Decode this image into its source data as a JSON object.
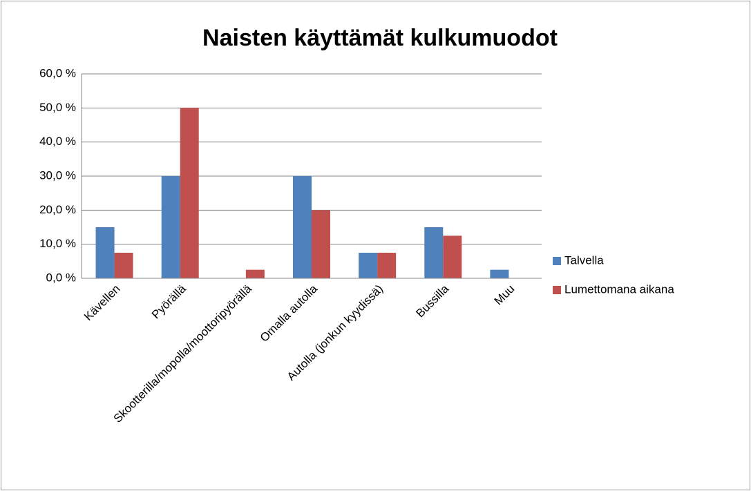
{
  "chart_data": {
    "type": "bar",
    "title": "Naisten käyttämät kulkumuodot",
    "categories": [
      "Kävellen",
      "Pyörällä",
      "Skootterilla/mopolla/moottoripyörällä",
      "Omalla autolla",
      "Autolla (jonkun kyydissä)",
      "Bussilla",
      "Muu"
    ],
    "series": [
      {
        "name": "Talvella",
        "color": "#4f81bd",
        "values": [
          15,
          30,
          0,
          30,
          7.5,
          15,
          2.5
        ]
      },
      {
        "name": "Lumettomana aikana",
        "color": "#c0504d",
        "values": [
          7.5,
          50,
          2.5,
          20,
          7.5,
          12.5,
          0
        ]
      }
    ],
    "ylim": [
      0,
      60
    ],
    "yticks": [
      {
        "value": 0,
        "label": "0,0 %"
      },
      {
        "value": 10,
        "label": "10,0 %"
      },
      {
        "value": 20,
        "label": "20,0 %"
      },
      {
        "value": 30,
        "label": "30,0 %"
      },
      {
        "value": 40,
        "label": "40,0 %"
      },
      {
        "value": 50,
        "label": "50,0 %"
      },
      {
        "value": 60,
        "label": "60,0 %"
      }
    ],
    "grid": true,
    "legend": "right"
  }
}
